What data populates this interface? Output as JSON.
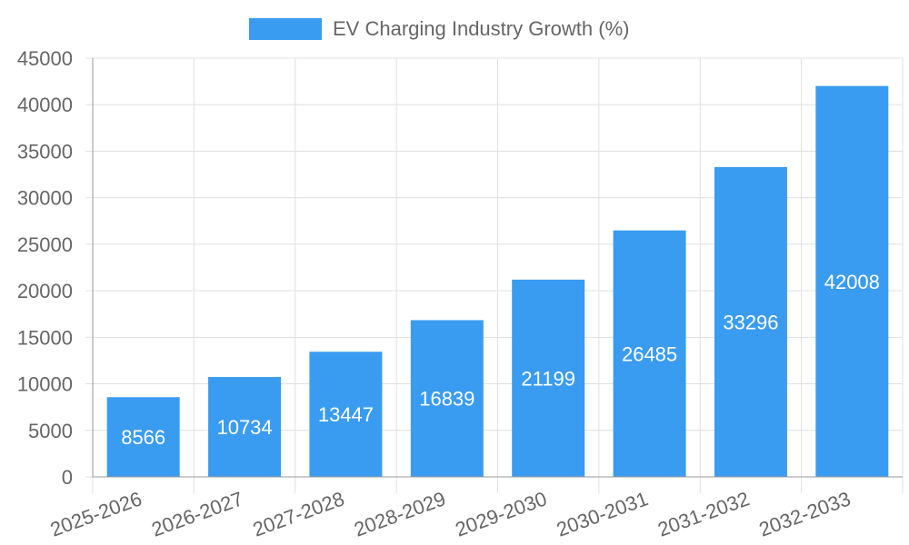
{
  "chart_data": {
    "type": "bar",
    "categories": [
      "2025-2026",
      "2026-2027",
      "2027-2028",
      "2028-2029",
      "2029-2030",
      "2030-2031",
      "2031-2032",
      "2032-2033"
    ],
    "series": [
      {
        "name": "EV Charging Industry Growth (%)",
        "values": [
          8566,
          10734,
          13447,
          16839,
          21199,
          26485,
          33296,
          42008
        ],
        "color": "#3a9cf0"
      }
    ],
    "ylim": [
      0,
      45000
    ],
    "yticks": [
      0,
      5000,
      10000,
      15000,
      20000,
      25000,
      30000,
      35000,
      40000,
      45000
    ],
    "grid": true,
    "legend": "top-center",
    "data_labels": true,
    "colors": {
      "bar": "#3a9cf0",
      "grid": "#e0e0e0",
      "text": "#666666",
      "label": "#ffffff"
    }
  }
}
